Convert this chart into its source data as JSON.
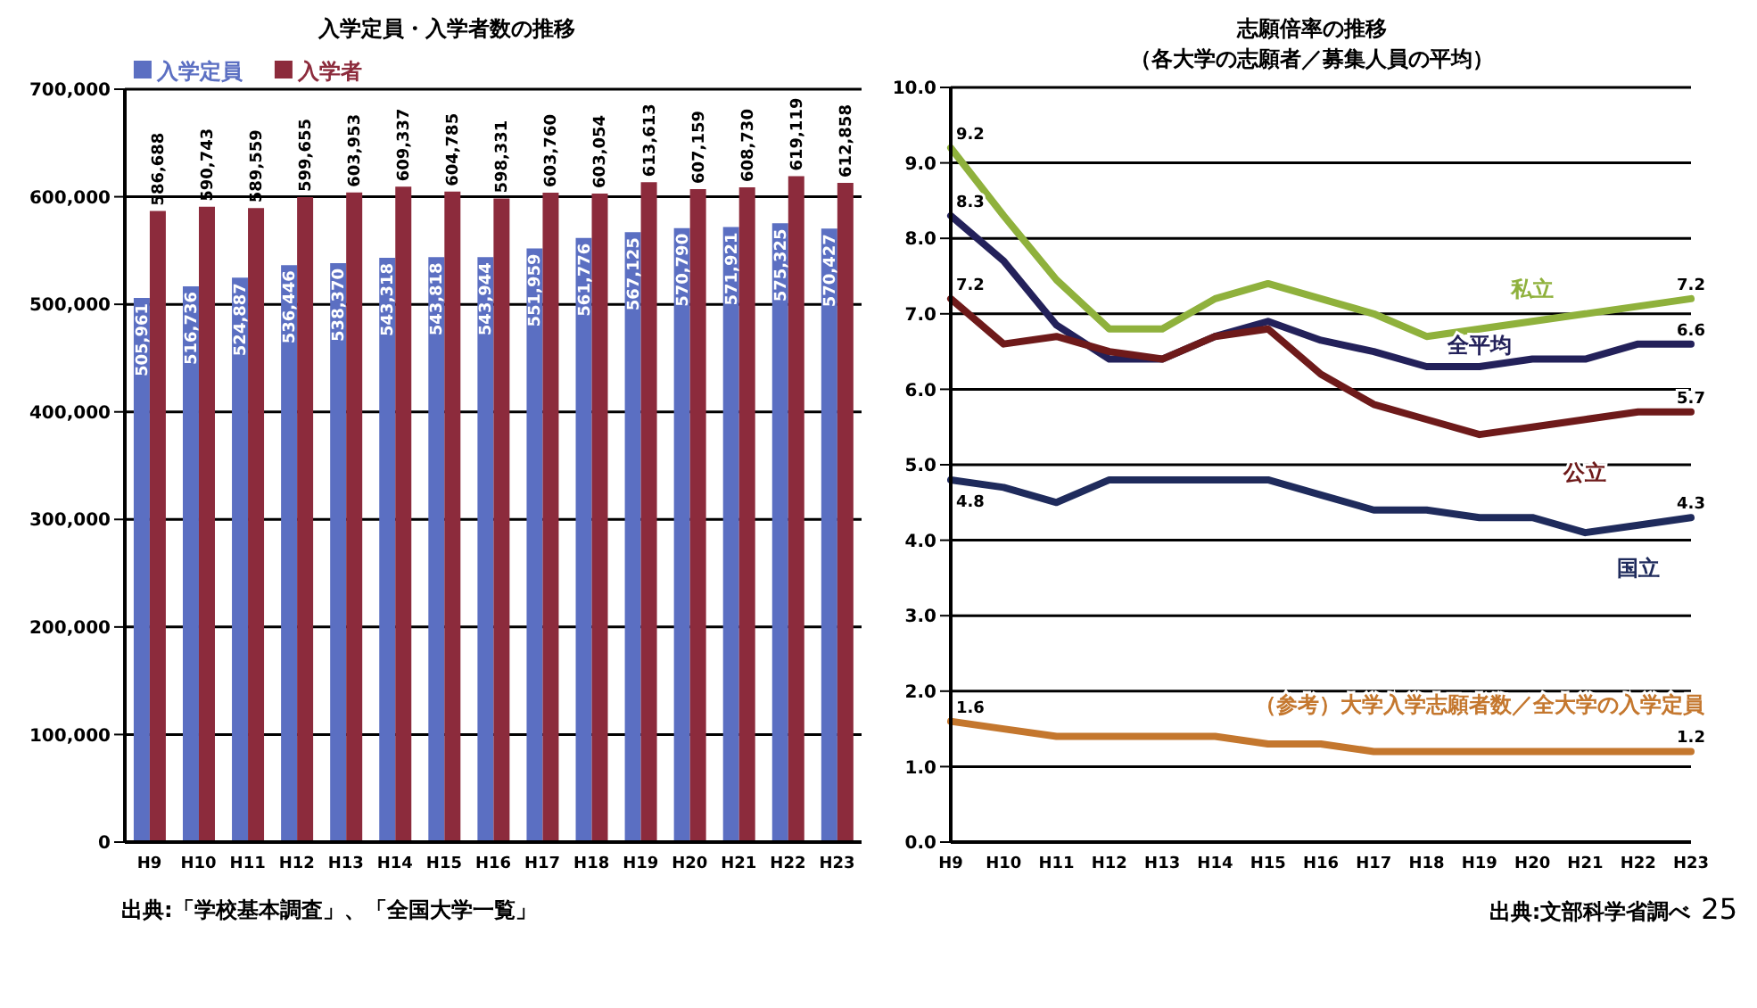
{
  "chart_data": [
    {
      "type": "bar",
      "title": "入学定員・入学者数の推移",
      "categories": [
        "H9",
        "H10",
        "H11",
        "H12",
        "H13",
        "H14",
        "H15",
        "H16",
        "H17",
        "H18",
        "H19",
        "H20",
        "H21",
        "H22",
        "H23"
      ],
      "series": [
        {
          "name": "入学定員",
          "color": "#5b6fc2",
          "values": [
            505961,
            516736,
            524887,
            536446,
            538370,
            543318,
            543818,
            543944,
            551959,
            561776,
            567125,
            570790,
            571921,
            575325,
            570427
          ],
          "value_labels": [
            "505,961",
            "516,736",
            "524,887",
            "536,446",
            "538,370",
            "543,318",
            "543,818",
            "543,944",
            "551,959",
            "561,776",
            "567,125",
            "570,790",
            "571,921",
            "575,325",
            "570,427"
          ]
        },
        {
          "name": "入学者",
          "color": "#8c2b3c",
          "values": [
            586688,
            590743,
            589559,
            599655,
            603953,
            609337,
            604785,
            598331,
            603760,
            603054,
            613613,
            607159,
            608730,
            619119,
            612858
          ],
          "value_labels": [
            "586,688",
            "590,743",
            "589,559",
            "599,655",
            "603,953",
            "609,337",
            "604,785",
            "598,331",
            "603,760",
            "603,054",
            "613,613",
            "607,159",
            "608,730",
            "619,119",
            "612,858"
          ]
        }
      ],
      "ylim": [
        0,
        700000
      ],
      "yticks": [
        {
          "value": 0,
          "label": "0"
        },
        {
          "value": 100000,
          "label": "100,000"
        },
        {
          "value": 200000,
          "label": "200,000"
        },
        {
          "value": 300000,
          "label": "300,000"
        },
        {
          "value": 400000,
          "label": "400,000"
        },
        {
          "value": 500000,
          "label": "500,000"
        },
        {
          "value": 600000,
          "label": "600,000"
        },
        {
          "value": 700000,
          "label": "700,000"
        }
      ],
      "grid": "y",
      "data_labels": true,
      "legend": "top left",
      "annotations": [
        "出典:「学校基本調査」、「全国大学一覧」"
      ]
    },
    {
      "type": "line",
      "title": "志願倍率の推移",
      "subtitle": "（各大学の志願者／募集人員の平均）",
      "categories": [
        "H9",
        "H10",
        "H11",
        "H12",
        "H13",
        "H14",
        "H15",
        "H16",
        "H17",
        "H18",
        "H19",
        "H20",
        "H21",
        "H22",
        "H23"
      ],
      "series": [
        {
          "name": "私立",
          "color": "#8fb13c",
          "values": [
            9.2,
            8.3,
            7.45,
            6.8,
            6.8,
            7.2,
            7.4,
            7.2,
            7.0,
            6.7,
            6.8,
            6.9,
            7.0,
            7.1,
            7.2
          ],
          "value_labels": [
            "9.2",
            null,
            null,
            null,
            null,
            null,
            null,
            null,
            null,
            null,
            null,
            null,
            null,
            null,
            "7.2"
          ]
        },
        {
          "name": "全平均",
          "color": "#23215a",
          "values": [
            8.3,
            7.7,
            6.85,
            6.4,
            6.4,
            6.7,
            6.9,
            6.65,
            6.5,
            6.3,
            6.3,
            6.4,
            6.4,
            6.6,
            6.6
          ],
          "value_labels": [
            "8.3",
            null,
            null,
            null,
            null,
            null,
            null,
            null,
            null,
            null,
            null,
            null,
            null,
            null,
            "6.6"
          ]
        },
        {
          "name": "公立",
          "color": "#6e1a1a",
          "values": [
            7.2,
            6.6,
            6.7,
            6.5,
            6.4,
            6.7,
            6.8,
            6.2,
            5.8,
            5.6,
            5.4,
            5.5,
            5.6,
            5.7,
            5.7
          ],
          "value_labels": [
            "7.2",
            null,
            null,
            null,
            null,
            null,
            null,
            null,
            null,
            null,
            null,
            null,
            null,
            null,
            "5.7"
          ]
        },
        {
          "name": "国立",
          "color": "#1f2b5c",
          "values": [
            4.8,
            4.7,
            4.5,
            4.8,
            4.8,
            4.8,
            4.8,
            4.6,
            4.4,
            4.4,
            4.3,
            4.3,
            4.1,
            4.2,
            4.3
          ],
          "value_labels": [
            "4.8",
            null,
            null,
            null,
            null,
            null,
            null,
            null,
            null,
            null,
            null,
            null,
            null,
            null,
            "4.3"
          ]
        },
        {
          "name": "（参考）大学入学志願者数／全大学の入学定員",
          "color": "#c4772e",
          "values": [
            1.6,
            1.5,
            1.4,
            1.4,
            1.4,
            1.4,
            1.3,
            1.3,
            1.2,
            1.2,
            1.2,
            1.2,
            1.2,
            1.2,
            1.2
          ],
          "value_labels": [
            "1.6",
            null,
            null,
            null,
            null,
            null,
            null,
            null,
            null,
            null,
            null,
            null,
            null,
            null,
            "1.2"
          ]
        }
      ],
      "ylim": [
        0,
        10
      ],
      "yticks": [
        {
          "value": 0,
          "label": "0.0"
        },
        {
          "value": 1,
          "label": "1.0"
        },
        {
          "value": 2,
          "label": "2.0"
        },
        {
          "value": 3,
          "label": "3.0"
        },
        {
          "value": 4,
          "label": "4.0"
        },
        {
          "value": 5,
          "label": "5.0"
        },
        {
          "value": 6,
          "label": "6.0"
        },
        {
          "value": 7,
          "label": "7.0"
        },
        {
          "value": 8,
          "label": "8.0"
        },
        {
          "value": 9,
          "label": "9.0"
        },
        {
          "value": 10,
          "label": "10.0"
        }
      ],
      "grid": "y",
      "marker": "none",
      "annotations": [
        "出典:文部科学省調べ",
        "25"
      ]
    }
  ]
}
